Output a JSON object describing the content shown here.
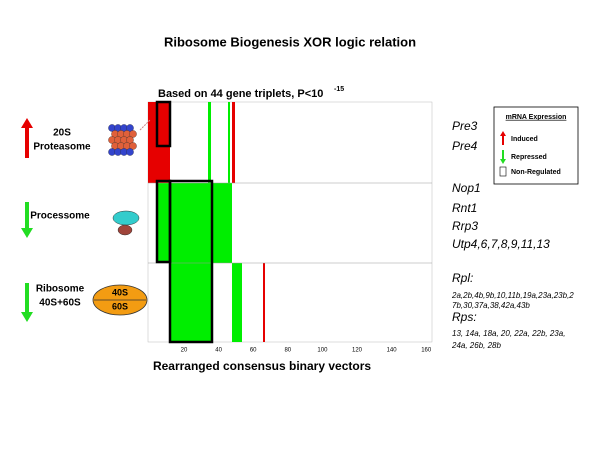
{
  "title": "Ribosome Biogenesis XOR logic relation",
  "subtitle": {
    "text": "Based on 44 gene triplets, P<10",
    "exponent": "-15"
  },
  "x_axis_label": "Rearranged consensus binary vectors",
  "x_ticks": [
    "20",
    "40",
    "60",
    "80",
    "100",
    "120",
    "140",
    "160"
  ],
  "groups": [
    {
      "label_lines": [
        "20S",
        "Proteasome"
      ]
    },
    {
      "label_lines": [
        "Processome"
      ]
    },
    {
      "label_lines": [
        "Ribosome",
        "40S+60S"
      ],
      "icon_labels": [
        "40S",
        "60S"
      ]
    }
  ],
  "genes": [
    "Pre3",
    "Pre4",
    "Nop1",
    "Rnt1",
    "Rrp3",
    "Utp4,6,7,8,9,11,13",
    "Rpl:",
    "Rps:"
  ],
  "gene_details": {
    "rpl": [
      "2a,2b,4b,9b,10,11b,19a,23a,23b,2",
      "7b,30,37a,38,42a,43b"
    ],
    "rps": [
      "13, 14a, 18a, 20, 22a, 22b, 23a,",
      "24a, 26b, 28b"
    ]
  },
  "legend": {
    "title": "mRNA Expression",
    "items": [
      "Induced",
      "Repressed",
      "Non-Regulated"
    ]
  }
}
